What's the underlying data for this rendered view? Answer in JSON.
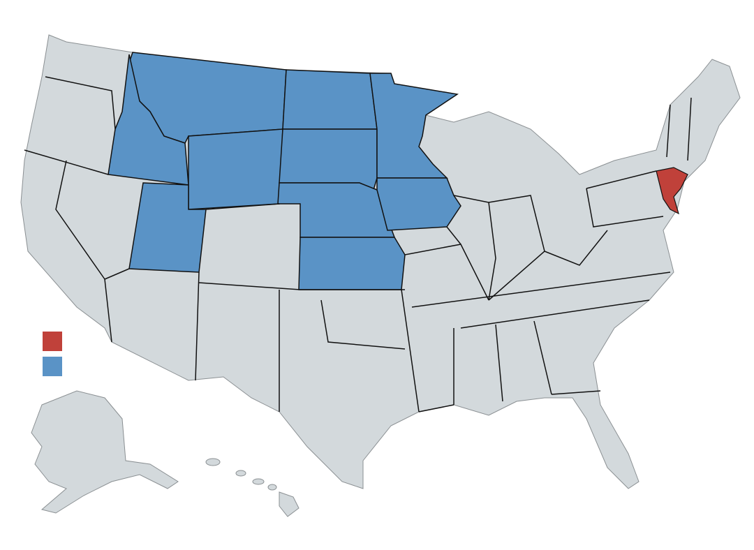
{
  "map": {
    "colors": {
      "background": "#ffffff",
      "land": "#d3d9dc",
      "county_border": "#8a8f92",
      "state_border": "#111111",
      "highlight_red": "#c0413a",
      "highlight_blue": "#5a93c6"
    },
    "legend": {
      "items": [
        {
          "color": "#c0413a",
          "label": ""
        },
        {
          "color": "#5a93c6",
          "label": ""
        }
      ]
    }
  }
}
